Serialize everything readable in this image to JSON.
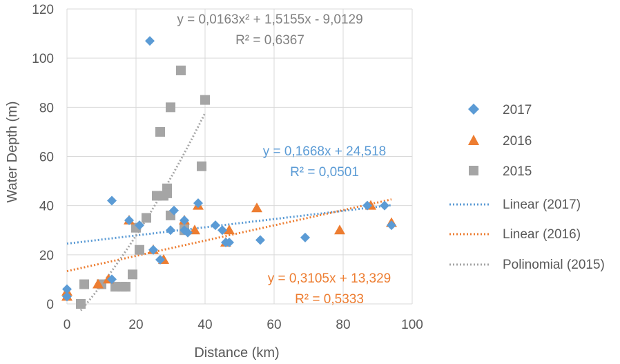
{
  "chart_data": {
    "type": "scatter",
    "xlabel": "Distance (km)",
    "ylabel": "Water Depth (m)",
    "xlim": [
      0,
      100
    ],
    "ylim": [
      0,
      120
    ],
    "xticks": [
      "0",
      "20",
      "40",
      "60",
      "80",
      "100"
    ],
    "yticks": [
      "0",
      "20",
      "40",
      "60",
      "80",
      "100",
      "120"
    ],
    "grid": "vertical and horizontal",
    "legend_position": "right",
    "series": [
      {
        "name": "2017",
        "marker": "diamond",
        "color": "#5B9BD5",
        "points": [
          [
            0,
            6
          ],
          [
            0,
            3
          ],
          [
            13,
            42
          ],
          [
            13,
            10
          ],
          [
            18,
            34
          ],
          [
            21,
            32
          ],
          [
            24,
            107
          ],
          [
            25,
            22
          ],
          [
            27,
            18
          ],
          [
            30,
            30
          ],
          [
            31,
            38
          ],
          [
            34,
            34
          ],
          [
            34,
            30
          ],
          [
            35,
            29
          ],
          [
            38,
            41
          ],
          [
            43,
            32
          ],
          [
            45,
            30
          ],
          [
            46,
            25
          ],
          [
            47,
            25
          ],
          [
            56,
            26
          ],
          [
            69,
            27
          ],
          [
            87,
            40
          ],
          [
            92,
            40
          ],
          [
            94,
            32
          ]
        ]
      },
      {
        "name": "2016",
        "marker": "triangle",
        "color": "#ED7D31",
        "points": [
          [
            0,
            5
          ],
          [
            0,
            3
          ],
          [
            9,
            8
          ],
          [
            12,
            10
          ],
          [
            18,
            34
          ],
          [
            25,
            22
          ],
          [
            28,
            18
          ],
          [
            34,
            34
          ],
          [
            37,
            30
          ],
          [
            38,
            40
          ],
          [
            46,
            25
          ],
          [
            47,
            30
          ],
          [
            55,
            39
          ],
          [
            79,
            30
          ],
          [
            88,
            40
          ],
          [
            94,
            33
          ]
        ]
      },
      {
        "name": "2015",
        "marker": "square",
        "color": "#A5A5A5",
        "points": [
          [
            4,
            0
          ],
          [
            5,
            8
          ],
          [
            10,
            8
          ],
          [
            14,
            7
          ],
          [
            16,
            7
          ],
          [
            17,
            7
          ],
          [
            19,
            12
          ],
          [
            20,
            31
          ],
          [
            21,
            22
          ],
          [
            23,
            35
          ],
          [
            26,
            44
          ],
          [
            27,
            70
          ],
          [
            28,
            44
          ],
          [
            29,
            47
          ],
          [
            29,
            45
          ],
          [
            30,
            80
          ],
          [
            30,
            36
          ],
          [
            33,
            95
          ],
          [
            34,
            31
          ],
          [
            34,
            30
          ],
          [
            39,
            56
          ],
          [
            40,
            83
          ]
        ]
      }
    ],
    "trendlines": [
      {
        "name": "Linear (2017)",
        "kind": "linear",
        "color": "#5B9BD5",
        "coefficients": [
          0,
          0.1668,
          24.518
        ],
        "x_range": [
          0,
          94
        ],
        "equation": "y = 0,1668x + 24,518",
        "r2": "R² = 0,0501"
      },
      {
        "name": "Linear (2016)",
        "kind": "linear",
        "color": "#ED7D31",
        "coefficients": [
          0,
          0.3105,
          13.329
        ],
        "x_range": [
          0,
          94
        ],
        "equation": "y = 0,3105x + 13,329",
        "r2": "R² = 0,5333"
      },
      {
        "name": "Polinomial (2015)",
        "kind": "polynomial",
        "color": "#A5A5A5",
        "coefficients": [
          0.0163,
          1.5155,
          -9.0129
        ],
        "x_range": [
          4,
          40
        ],
        "equation": "y = 0,0163x² + 1,5155x - 9,0129",
        "r2": "R² = 0,6367"
      }
    ]
  }
}
